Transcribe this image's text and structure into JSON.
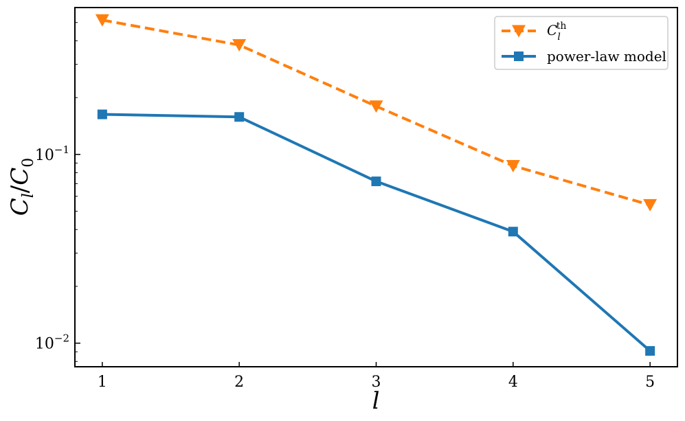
{
  "chart_data": {
    "type": "line",
    "x": [
      1,
      2,
      3,
      4,
      5
    ],
    "xlabel": "l",
    "ylabel": "C_l/C_0",
    "yscale": "log",
    "xlim": [
      0.8,
      5.2
    ],
    "ylim": [
      0.0075,
      0.6
    ],
    "xticks": [
      "1",
      "2",
      "3",
      "4",
      "5"
    ],
    "yticks": [
      {
        "value": 0.1,
        "base": "10",
        "exp": "−1"
      },
      {
        "value": 0.01,
        "base": "10",
        "exp": "−2"
      }
    ],
    "grid": false,
    "legend_position": "top-right",
    "series": [
      {
        "name": "C_l^th",
        "legend_main": "C",
        "legend_sub": "l",
        "legend_sup": "th",
        "values": [
          0.515,
          0.38,
          0.18,
          0.087,
          0.054
        ],
        "color": "#ff7f0e",
        "linestyle": "dashed",
        "marker": "triangle-down"
      },
      {
        "name": "power-law model",
        "values": [
          0.163,
          0.158,
          0.072,
          0.039,
          0.0091
        ],
        "color": "#1f77b4",
        "linestyle": "solid",
        "marker": "square"
      }
    ]
  }
}
